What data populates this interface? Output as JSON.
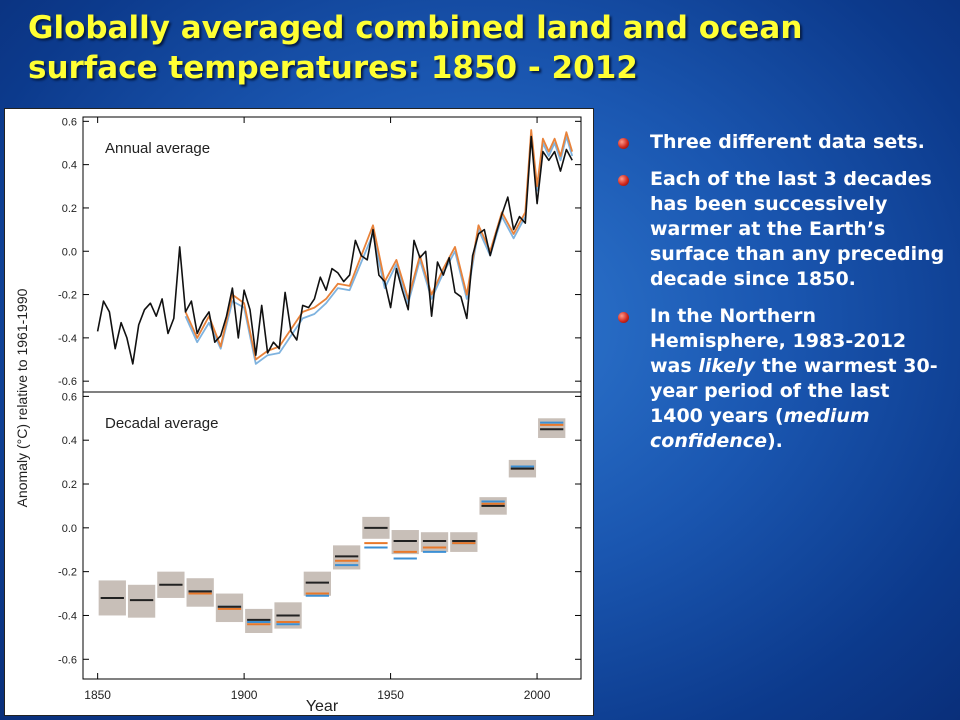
{
  "slide": {
    "title": "Globally averaged combined land and ocean surface temperatures: 1850 - 2012",
    "bullets": [
      {
        "parts": [
          {
            "text": "Three different data sets.",
            "italic": false
          }
        ]
      },
      {
        "parts": [
          {
            "text": "Each of the last 3 decades has been successively warmer at the Earth’s surface than any preceding decade since 1850.",
            "italic": false
          }
        ]
      },
      {
        "parts": [
          {
            "text": "In the Northern Hemisphere, 1983-2012 was ",
            "italic": false
          },
          {
            "text": "likely",
            "italic": true
          },
          {
            "text": " the warmest 30-year period of the last 1400 years (",
            "italic": false
          },
          {
            "text": "medium confidence",
            "italic": true
          },
          {
            "text": ").",
            "italic": false
          }
        ]
      }
    ]
  },
  "chart_data": [
    {
      "type": "line",
      "panel_label": "Annual average",
      "ylabel": "Anomaly (°C) relative to 1961-1990",
      "xlim": [
        1845,
        2015
      ],
      "ylim": [
        -0.65,
        0.62
      ],
      "yticks": [
        0.6,
        0.4,
        0.2,
        0.0,
        -0.2,
        -0.4,
        -0.6
      ],
      "ytick_labels": [
        "0.6",
        "0.4",
        "0.2",
        "0.0",
        "-0.2",
        "-0.4",
        "-0.6"
      ],
      "series": [
        {
          "color": "#111111",
          "x": [
            1850,
            1852,
            1854,
            1856,
            1858,
            1860,
            1862,
            1864,
            1866,
            1868,
            1870,
            1872,
            1874,
            1876,
            1878,
            1880,
            1882,
            1884,
            1886,
            1888,
            1890,
            1892,
            1894,
            1896,
            1898,
            1900,
            1902,
            1904,
            1906,
            1908,
            1910,
            1912,
            1914,
            1916,
            1918,
            1920,
            1922,
            1924,
            1926,
            1928,
            1930,
            1932,
            1934,
            1936,
            1938,
            1940,
            1942,
            1944,
            1946,
            1948,
            1950,
            1952,
            1954,
            1956,
            1958,
            1960,
            1962,
            1964,
            1966,
            1968,
            1970,
            1972,
            1974,
            1976,
            1978,
            1980,
            1982,
            1984,
            1986,
            1988,
            1990,
            1992,
            1994,
            1996,
            1998,
            2000,
            2002,
            2004,
            2006,
            2008,
            2010,
            2012
          ],
          "y": [
            -0.37,
            -0.23,
            -0.28,
            -0.45,
            -0.33,
            -0.4,
            -0.52,
            -0.34,
            -0.27,
            -0.24,
            -0.3,
            -0.22,
            -0.38,
            -0.31,
            0.02,
            -0.28,
            -0.23,
            -0.38,
            -0.32,
            -0.28,
            -0.42,
            -0.39,
            -0.3,
            -0.17,
            -0.4,
            -0.18,
            -0.27,
            -0.48,
            -0.25,
            -0.47,
            -0.42,
            -0.45,
            -0.19,
            -0.37,
            -0.41,
            -0.25,
            -0.26,
            -0.22,
            -0.12,
            -0.18,
            -0.08,
            -0.1,
            -0.14,
            -0.11,
            0.05,
            -0.02,
            -0.04,
            0.1,
            -0.11,
            -0.14,
            -0.26,
            -0.08,
            -0.18,
            -0.27,
            0.05,
            -0.03,
            0.0,
            -0.3,
            -0.05,
            -0.11,
            -0.03,
            -0.19,
            -0.21,
            -0.31,
            -0.02,
            0.08,
            0.1,
            -0.02,
            0.08,
            0.17,
            0.25,
            0.1,
            0.16,
            0.13,
            0.53,
            0.22,
            0.46,
            0.42,
            0.46,
            0.37,
            0.47,
            0.42
          ]
        },
        {
          "color": "#e8823a",
          "x": [
            1880,
            1884,
            1888,
            1892,
            1896,
            1900,
            1904,
            1908,
            1912,
            1916,
            1920,
            1924,
            1928,
            1932,
            1936,
            1940,
            1944,
            1948,
            1952,
            1956,
            1960,
            1964,
            1968,
            1972,
            1976,
            1980,
            1984,
            1988,
            1992,
            1996,
            1998,
            2000,
            2002,
            2004,
            2006,
            2008,
            2010,
            2012
          ],
          "y": [
            -0.28,
            -0.4,
            -0.3,
            -0.44,
            -0.2,
            -0.24,
            -0.5,
            -0.46,
            -0.44,
            -0.36,
            -0.28,
            -0.26,
            -0.22,
            -0.15,
            -0.16,
            -0.02,
            0.12,
            -0.14,
            -0.04,
            -0.22,
            -0.02,
            -0.2,
            -0.08,
            0.02,
            -0.2,
            0.12,
            0.0,
            0.18,
            0.08,
            0.18,
            0.56,
            0.3,
            0.52,
            0.46,
            0.52,
            0.44,
            0.55,
            0.46
          ]
        },
        {
          "color": "#7fb3df",
          "x": [
            1880,
            1884,
            1888,
            1892,
            1896,
            1900,
            1904,
            1908,
            1912,
            1916,
            1920,
            1924,
            1928,
            1932,
            1936,
            1940,
            1944,
            1948,
            1952,
            1956,
            1960,
            1964,
            1968,
            1972,
            1976,
            1980,
            1984,
            1988,
            1992,
            1996,
            1998,
            2000,
            2002,
            2004,
            2006,
            2008,
            2010,
            2012
          ],
          "y": [
            -0.3,
            -0.42,
            -0.33,
            -0.45,
            -0.23,
            -0.26,
            -0.52,
            -0.48,
            -0.47,
            -0.39,
            -0.31,
            -0.29,
            -0.24,
            -0.17,
            -0.18,
            -0.05,
            0.08,
            -0.17,
            -0.06,
            -0.24,
            -0.04,
            -0.22,
            -0.1,
            0.0,
            -0.22,
            0.1,
            -0.02,
            0.16,
            0.06,
            0.16,
            0.54,
            0.28,
            0.5,
            0.44,
            0.5,
            0.42,
            0.53,
            0.44
          ]
        }
      ]
    },
    {
      "type": "bar",
      "panel_label": "Decadal average",
      "xlabel": "Year",
      "xticks": [
        1850,
        1900,
        1950,
        2000
      ],
      "xtick_labels": [
        "1850",
        "1900",
        "1950",
        "2000"
      ],
      "xlim": [
        1845,
        2015
      ],
      "ylim": [
        -0.69,
        0.62
      ],
      "yticks": [
        0.6,
        0.4,
        0.2,
        0.0,
        -0.2,
        -0.4,
        -0.6
      ],
      "ytick_labels": [
        "0.6",
        "0.4",
        "0.2",
        "0.0",
        "-0.2",
        "-0.4",
        "-0.6"
      ],
      "uncertainty_color": "#c8bfb8",
      "decades": [
        {
          "start": 1850,
          "end": 1860,
          "low": -0.4,
          "high": -0.24,
          "black": -0.32,
          "orange": null,
          "blue": null
        },
        {
          "start": 1860,
          "end": 1870,
          "low": -0.41,
          "high": -0.26,
          "black": -0.33,
          "orange": null,
          "blue": null
        },
        {
          "start": 1870,
          "end": 1880,
          "low": -0.32,
          "high": -0.2,
          "black": -0.26,
          "orange": null,
          "blue": null
        },
        {
          "start": 1880,
          "end": 1890,
          "low": -0.36,
          "high": -0.23,
          "black": -0.29,
          "orange": -0.3,
          "blue": -0.29
        },
        {
          "start": 1890,
          "end": 1900,
          "low": -0.43,
          "high": -0.3,
          "black": -0.36,
          "orange": -0.37,
          "blue": -0.36
        },
        {
          "start": 1900,
          "end": 1910,
          "low": -0.48,
          "high": -0.37,
          "black": -0.42,
          "orange": -0.44,
          "blue": -0.43
        },
        {
          "start": 1910,
          "end": 1920,
          "low": -0.46,
          "high": -0.34,
          "black": -0.4,
          "orange": -0.43,
          "blue": -0.44
        },
        {
          "start": 1920,
          "end": 1930,
          "low": -0.31,
          "high": -0.2,
          "black": -0.25,
          "orange": -0.3,
          "blue": -0.31
        },
        {
          "start": 1930,
          "end": 1940,
          "low": -0.19,
          "high": -0.08,
          "black": -0.13,
          "orange": -0.15,
          "blue": -0.17
        },
        {
          "start": 1940,
          "end": 1950,
          "low": -0.05,
          "high": 0.05,
          "black": 0.0,
          "orange": -0.07,
          "blue": -0.09
        },
        {
          "start": 1950,
          "end": 1960,
          "low": -0.12,
          "high": -0.01,
          "black": -0.06,
          "orange": -0.11,
          "blue": -0.14
        },
        {
          "start": 1960,
          "end": 1970,
          "low": -0.11,
          "high": -0.02,
          "black": -0.06,
          "orange": -0.09,
          "blue": -0.11
        },
        {
          "start": 1970,
          "end": 1980,
          "low": -0.11,
          "high": -0.02,
          "black": -0.06,
          "orange": -0.07,
          "blue": -0.07
        },
        {
          "start": 1980,
          "end": 1990,
          "low": 0.06,
          "high": 0.14,
          "black": 0.1,
          "orange": 0.11,
          "blue": 0.12
        },
        {
          "start": 1990,
          "end": 2000,
          "low": 0.23,
          "high": 0.31,
          "black": 0.27,
          "orange": 0.27,
          "blue": 0.28
        },
        {
          "start": 2000,
          "end": 2010,
          "low": 0.41,
          "high": 0.5,
          "black": 0.45,
          "orange": 0.47,
          "blue": 0.48
        }
      ]
    }
  ]
}
